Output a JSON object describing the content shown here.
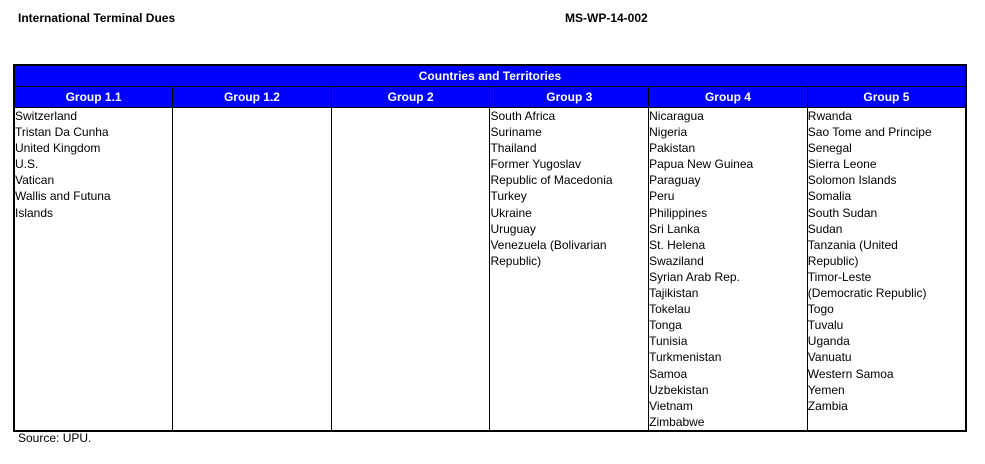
{
  "page_header": {
    "title": "International Terminal Dues",
    "doc_number": "MS-WP-14-002"
  },
  "table": {
    "title": "Countries and Territories",
    "accent_color": "#0000FF",
    "columns": [
      {
        "label": "Group 1.1",
        "items": [
          "Switzerland",
          "Tristan Da Cunha",
          "United Kingdom",
          "U.S.",
          "Vatican",
          "Wallis and Futuna\nIslands"
        ]
      },
      {
        "label": "Group 1.2",
        "items": []
      },
      {
        "label": "Group 2",
        "items": []
      },
      {
        "label": "Group 3",
        "items": [
          "South Africa",
          "Suriname",
          "Thailand",
          "Former Yugoslav\nRepublic of Macedonia",
          "Turkey",
          "Ukraine",
          "Uruguay",
          "Venezuela (Bolivarian\nRepublic)"
        ]
      },
      {
        "label": "Group 4",
        "items": [
          "Nicaragua",
          "Nigeria",
          "Pakistan",
          "Papua New Guinea",
          "Paraguay",
          "Peru",
          "Philippines",
          "Sri Lanka",
          "St. Helena",
          "Swaziland",
          "Syrian Arab Rep.",
          "Tajikistan",
          "Tokelau",
          "Tonga",
          "Tunisia",
          "Turkmenistan",
          "Samoa",
          "Uzbekistan",
          "Vietnam",
          "Zimbabwe"
        ]
      },
      {
        "label": "Group 5",
        "items": [
          "Rwanda",
          "Sao Tome and Principe",
          "Senegal",
          "Sierra Leone",
          "Solomon Islands",
          "Somalia",
          "South Sudan",
          "Sudan",
          "Tanzania (United\nRepublic)",
          "Timor-Leste\n(Democratic Republic)",
          "Togo",
          "Tuvalu",
          "Uganda",
          "Vanuatu",
          "Western Samoa",
          "Yemen",
          "Zambia"
        ]
      }
    ]
  },
  "footer": {
    "source": "Source: UPU."
  }
}
